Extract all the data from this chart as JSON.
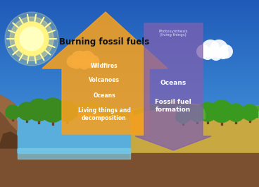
{
  "arrow_up_color": "#f5a020",
  "arrow_up_alpha": 0.88,
  "arrow_down_color": "#8060b0",
  "arrow_down_alpha": 0.75,
  "title_text": "Burning fossil fuels",
  "title_color": "#1a1a1a",
  "up_labels": [
    "Wildfires",
    "Volcanoes",
    "Oceans",
    "Living things and\ndecomposition"
  ],
  "photo_label": "Photosynthesis\n(living things)",
  "down_labels": [
    "Oceans",
    "Fossil fuel\nformation"
  ],
  "sky_top": "#1850a8",
  "sky_bottom": "#4aa0e0",
  "figsize": [
    3.68,
    2.65
  ],
  "dpi": 100
}
